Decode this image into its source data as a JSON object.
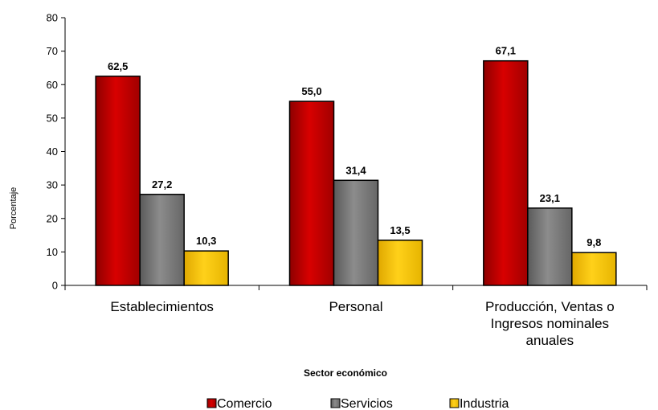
{
  "chart_data": {
    "type": "bar",
    "categories": [
      [
        "Establecimientos"
      ],
      [
        "Personal"
      ],
      [
        "Producción, Ventas o",
        "Ingresos nominales",
        "anuales"
      ]
    ],
    "series": [
      {
        "name": "Comercio",
        "values": [
          62.5,
          55.0,
          67.1
        ],
        "labels": [
          "62,5",
          "55,0",
          "67,1"
        ],
        "color": "#CC0000"
      },
      {
        "name": "Servicios",
        "values": [
          27.2,
          31.4,
          23.1
        ],
        "labels": [
          "27,2",
          "31,4",
          "23,1"
        ],
        "color": "#808080"
      },
      {
        "name": "Industria",
        "values": [
          10.3,
          13.5,
          9.8
        ],
        "labels": [
          "10,3",
          "13,5",
          "9,8"
        ],
        "color": "#FFCC00"
      }
    ],
    "xlabel": "Sector económico",
    "ylabel": "Porcentaje",
    "ylim": [
      0,
      80
    ],
    "yticks": [
      0,
      10,
      20,
      30,
      40,
      50,
      60,
      70,
      80
    ],
    "grid": false,
    "legend_position": "bottom"
  }
}
